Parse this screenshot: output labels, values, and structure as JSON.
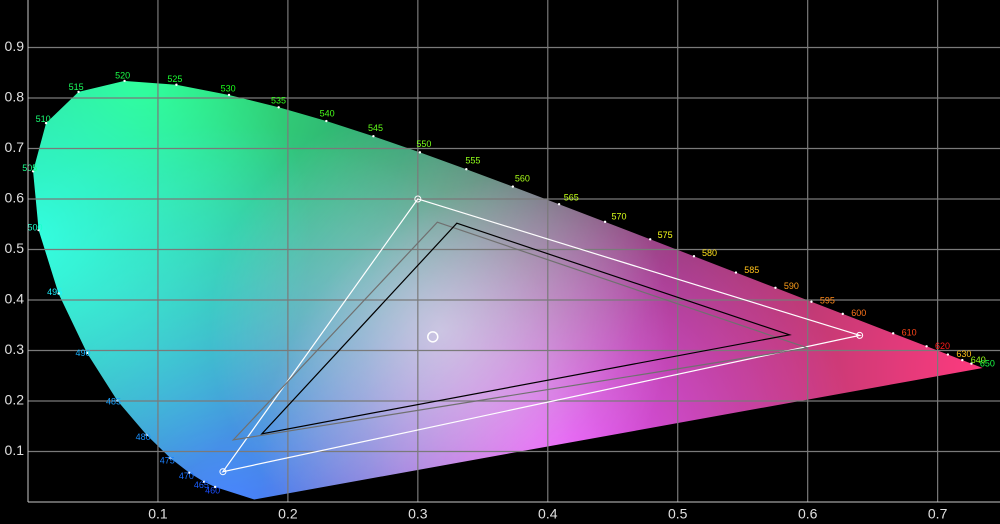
{
  "chart_data": {
    "type": "chromaticity",
    "xlim": [
      0,
      0.748
    ],
    "ylim": [
      0,
      0.994
    ],
    "xticks": [
      0.1,
      0.2,
      0.3,
      0.4,
      0.5,
      0.6,
      0.7
    ],
    "yticks": [
      0.1,
      0.2,
      0.3,
      0.4,
      0.5,
      0.6,
      0.7,
      0.8,
      0.9
    ],
    "grid": true,
    "locus": {
      "labels": [
        null,
        "460",
        "465",
        "470",
        "475",
        "480",
        "485",
        "490",
        "495",
        "500",
        "505",
        "510",
        "515",
        "520",
        "525",
        "530",
        "535",
        "540",
        "545",
        "550",
        "555",
        "560",
        "565",
        "570",
        "575",
        "580",
        "585",
        "590",
        "595",
        "600",
        "610",
        "620",
        "630",
        "640",
        "650",
        null
      ],
      "x": [
        0.1741,
        0.144,
        0.1355,
        0.1241,
        0.1096,
        0.0913,
        0.0687,
        0.0454,
        0.0235,
        0.0082,
        0.0039,
        0.0139,
        0.0389,
        0.0743,
        0.1142,
        0.1547,
        0.1929,
        0.2296,
        0.2658,
        0.3016,
        0.3373,
        0.3731,
        0.4087,
        0.4441,
        0.4788,
        0.5125,
        0.5448,
        0.5752,
        0.6029,
        0.627,
        0.6658,
        0.6915,
        0.7079,
        0.719,
        0.726,
        0.7347
      ],
      "y": [
        0.005,
        0.0297,
        0.0399,
        0.0578,
        0.0868,
        0.1327,
        0.2007,
        0.295,
        0.4127,
        0.5384,
        0.6548,
        0.7502,
        0.812,
        0.8338,
        0.8262,
        0.8059,
        0.7816,
        0.7543,
        0.7243,
        0.6923,
        0.6589,
        0.6245,
        0.5896,
        0.5547,
        0.5202,
        0.4866,
        0.4544,
        0.4242,
        0.3965,
        0.3725,
        0.334,
        0.3083,
        0.292,
        0.2809,
        0.274,
        0.2653
      ]
    },
    "series": [
      {
        "color": "#ffffff",
        "markers": true,
        "x": [
          0.64,
          0.3,
          0.15
        ],
        "y": [
          0.33,
          0.6,
          0.06
        ]
      },
      {
        "color": "#707070",
        "markers": false,
        "x": [
          0.6,
          0.315,
          0.158
        ],
        "y": [
          0.305,
          0.554,
          0.123
        ]
      },
      {
        "color": "#000000",
        "markers": false,
        "x": [
          0.586,
          0.33,
          0.18
        ],
        "y": [
          0.331,
          0.552,
          0.135
        ]
      }
    ],
    "white_point": {
      "x": 0.3115,
      "y": 0.327,
      "color": "#ffffff"
    }
  }
}
